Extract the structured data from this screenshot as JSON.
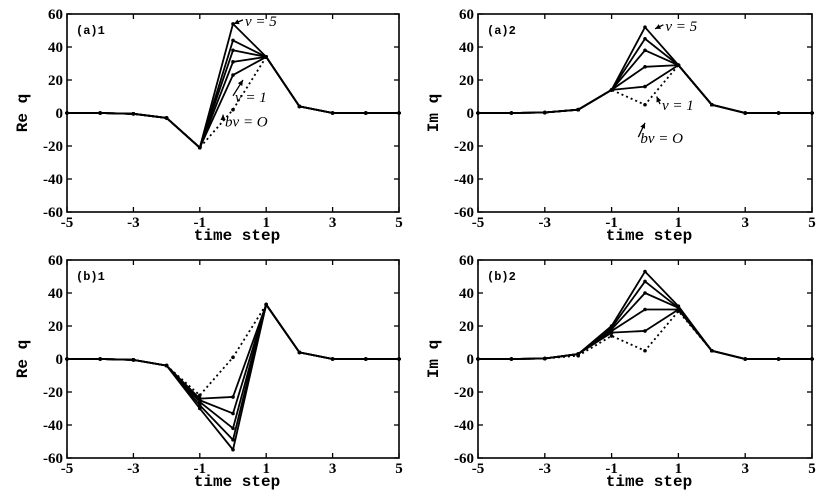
{
  "chart_data": [
    {
      "type": "line",
      "panel_label": "(a)1",
      "xlabel": "time step",
      "ylabel": "Re q",
      "xlim": [
        -5,
        5
      ],
      "ylim": [
        -60,
        60
      ],
      "xticks": [
        -5,
        -3,
        -1,
        1,
        3,
        5
      ],
      "yticks": [
        -60,
        -40,
        -20,
        0,
        20,
        40,
        60
      ],
      "x": [
        -5,
        -4,
        -3,
        -2,
        -1,
        0,
        1,
        2,
        3,
        4,
        5
      ],
      "series": [
        {
          "style": "dotted",
          "values": [
            0,
            0,
            -0.5,
            -3,
            -21,
            2,
            34,
            4,
            0,
            0,
            0
          ]
        },
        {
          "style": "solid",
          "values": [
            0,
            0,
            -0.5,
            -3,
            -21,
            23,
            34,
            4,
            0,
            0,
            0
          ]
        },
        {
          "style": "solid",
          "values": [
            0,
            0,
            -0.5,
            -3,
            -21,
            31,
            34,
            4,
            0,
            0,
            0
          ]
        },
        {
          "style": "solid",
          "values": [
            0,
            0,
            -0.5,
            -3,
            -21,
            38,
            34,
            4,
            0,
            0,
            0
          ]
        },
        {
          "style": "solid",
          "values": [
            0,
            0,
            -0.5,
            -3,
            -21,
            44,
            34,
            4,
            0,
            0,
            0
          ]
        },
        {
          "style": "solid",
          "values": [
            0,
            0,
            -0.5,
            -3,
            -21,
            54,
            34,
            4,
            0,
            0,
            0
          ]
        }
      ],
      "annotations": [
        {
          "text": "ν = 5",
          "x": 0.3,
          "y": 54,
          "ax": 0.02,
          "ay": 54
        },
        {
          "text": "ν = 1",
          "x": 0.0,
          "y": 8,
          "ax": 0.3,
          "ay": 20
        },
        {
          "text": "bν = O",
          "x": -0.3,
          "y": -7,
          "ax": -0.3,
          "ay": -1
        }
      ]
    },
    {
      "type": "line",
      "panel_label": "(a)2",
      "xlabel": "time step",
      "ylabel": "Im q",
      "xlim": [
        -5,
        5
      ],
      "ylim": [
        -60,
        60
      ],
      "xticks": [
        -5,
        -3,
        -1,
        1,
        3,
        5
      ],
      "yticks": [
        -60,
        -40,
        -20,
        0,
        20,
        40,
        60
      ],
      "x": [
        -5,
        -4,
        -3,
        -2,
        -1,
        0,
        1,
        2,
        3,
        4,
        5
      ],
      "series": [
        {
          "style": "dotted",
          "values": [
            0,
            0,
            0.3,
            2,
            14,
            5,
            29,
            5,
            0,
            0,
            0
          ]
        },
        {
          "style": "solid",
          "values": [
            0,
            0,
            0.3,
            2,
            14,
            16,
            29,
            5,
            0,
            0,
            0
          ]
        },
        {
          "style": "solid",
          "values": [
            0,
            0,
            0.3,
            2,
            14,
            28,
            29,
            5,
            0,
            0,
            0
          ]
        },
        {
          "style": "solid",
          "values": [
            0,
            0,
            0.3,
            2,
            14,
            38,
            29,
            5,
            0,
            0,
            0
          ]
        },
        {
          "style": "solid",
          "values": [
            0,
            0,
            0.3,
            2,
            14,
            45,
            29,
            5,
            0,
            0,
            0
          ]
        },
        {
          "style": "solid",
          "values": [
            0,
            0,
            0.3,
            2,
            14,
            52,
            29,
            5,
            0,
            0,
            0
          ]
        }
      ],
      "annotations": [
        {
          "text": "ν = 5",
          "x": 0.55,
          "y": 51,
          "ax": 0.3,
          "ay": 51
        },
        {
          "text": "ν = 1",
          "x": 0.45,
          "y": 3,
          "ax": 0.35,
          "ay": 10
        },
        {
          "text": "bν = O",
          "x": -0.2,
          "y": -17,
          "ax": 0.0,
          "ay": -6
        }
      ]
    },
    {
      "type": "line",
      "panel_label": "(b)1",
      "xlabel": "time step",
      "ylabel": "Re q",
      "xlim": [
        -5,
        5
      ],
      "ylim": [
        -60,
        60
      ],
      "xticks": [
        -5,
        -3,
        -1,
        1,
        3,
        5
      ],
      "yticks": [
        -60,
        -40,
        -20,
        0,
        20,
        40,
        60
      ],
      "x": [
        -5,
        -4,
        -3,
        -2,
        -1,
        0,
        1,
        2,
        3,
        4,
        5
      ],
      "series": [
        {
          "style": "dotted",
          "values": [
            0,
            0,
            -0.5,
            -4,
            -22,
            1,
            33,
            4,
            0,
            0,
            0
          ]
        },
        {
          "style": "solid",
          "values": [
            0,
            0,
            -0.5,
            -4,
            -24,
            -23,
            33,
            4,
            0,
            0,
            0
          ]
        },
        {
          "style": "solid",
          "values": [
            0,
            0,
            -0.5,
            -4,
            -25,
            -33,
            33,
            4,
            0,
            0,
            0
          ]
        },
        {
          "style": "solid",
          "values": [
            0,
            0,
            -0.5,
            -4,
            -26,
            -42,
            33,
            4,
            0,
            0,
            0
          ]
        },
        {
          "style": "solid",
          "values": [
            0,
            0,
            -0.5,
            -4,
            -28,
            -49,
            33,
            4,
            0,
            0,
            0
          ]
        },
        {
          "style": "solid",
          "values": [
            0,
            0,
            -0.5,
            -4,
            -30,
            -55,
            33,
            4,
            0,
            0,
            0
          ]
        }
      ]
    },
    {
      "type": "line",
      "panel_label": "(b)2",
      "xlabel": "time step",
      "ylabel": "Im q",
      "xlim": [
        -5,
        5
      ],
      "ylim": [
        -60,
        60
      ],
      "xticks": [
        -5,
        -3,
        -1,
        1,
        3,
        5
      ],
      "yticks": [
        -60,
        -40,
        -20,
        0,
        20,
        40,
        60
      ],
      "x": [
        -5,
        -4,
        -3,
        -2,
        -1,
        0,
        1,
        2,
        3,
        4,
        5
      ],
      "series": [
        {
          "style": "dotted",
          "values": [
            0,
            0,
            0.3,
            2,
            14,
            5,
            29,
            5,
            0,
            0,
            0
          ]
        },
        {
          "style": "solid",
          "values": [
            0,
            0,
            0.3,
            3,
            16,
            17,
            30,
            5,
            0,
            0,
            0
          ]
        },
        {
          "style": "solid",
          "values": [
            0,
            0,
            0.3,
            3,
            17,
            30,
            30,
            5,
            0,
            0,
            0
          ]
        },
        {
          "style": "solid",
          "values": [
            0,
            0,
            0.3,
            3,
            18,
            40,
            31,
            5,
            0,
            0,
            0
          ]
        },
        {
          "style": "solid",
          "values": [
            0,
            0,
            0.3,
            3,
            19,
            47,
            31,
            5,
            0,
            0,
            0
          ]
        },
        {
          "style": "solid",
          "values": [
            0,
            0,
            0.3,
            3,
            20,
            53,
            32,
            5,
            0,
            0,
            0
          ]
        }
      ]
    }
  ]
}
